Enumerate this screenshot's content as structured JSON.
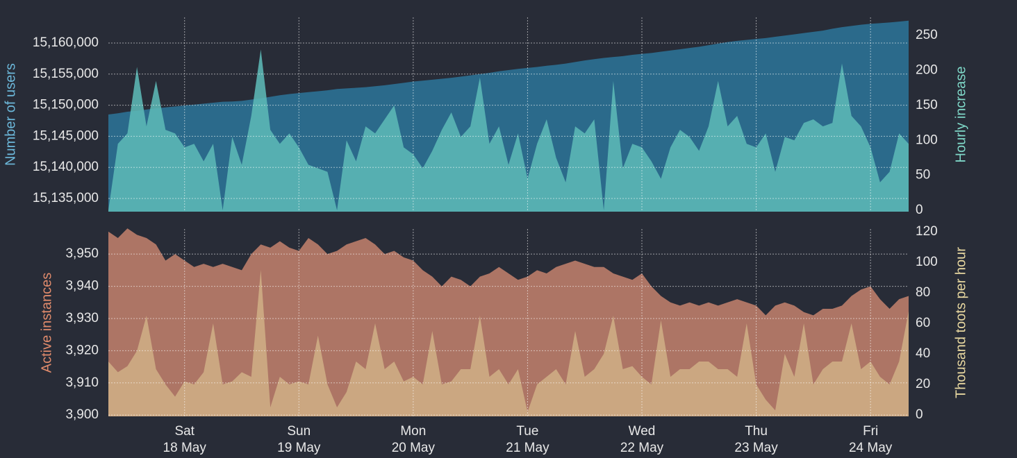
{
  "chart_data": [
    {
      "type": "area",
      "series": [
        {
          "name": "Number of users",
          "color": "#2b6a8b",
          "label_color": "#6cb8da",
          "values": [
            15148500,
            15148700,
            15148950,
            15149100,
            15149300,
            15149500,
            15149650,
            15149800,
            15149950,
            15150100,
            15150250,
            15150400,
            15150550,
            15150600,
            15150700,
            15150900,
            15151100,
            15151350,
            15151600,
            15151800,
            15151950,
            15152100,
            15152250,
            15152400,
            15152600,
            15152700,
            15152800,
            15152900,
            15153050,
            15153200,
            15153400,
            15153600,
            15153800,
            15153950,
            15154100,
            15154250,
            15154400,
            15154600,
            15154800,
            15155000,
            15155200,
            15155450,
            15155650,
            15155850,
            15156000,
            15156150,
            15156350,
            15156500,
            15156700,
            15156950,
            15157200,
            15157400,
            15157600,
            15157750,
            15157900,
            15158100,
            15158250,
            15158400,
            15158600,
            15158800,
            15159000,
            15159200,
            15159400,
            15159650,
            15159900,
            15160150,
            15160350,
            15160500,
            15160650,
            15160800,
            15161000,
            15161200,
            15161400,
            15161600,
            15161800,
            15162000,
            15162300,
            15162550,
            15162750,
            15162950,
            15163100,
            15163200,
            15163300,
            15163450,
            15163600
          ]
        },
        {
          "name": "Hourly increase",
          "color": "#5cb8b6",
          "label_color": "#7fd8c8",
          "axis": "y2",
          "values": [
            0,
            95,
            110,
            205,
            120,
            185,
            115,
            110,
            90,
            95,
            70,
            95,
            0,
            105,
            65,
            135,
            230,
            115,
            95,
            110,
            90,
            65,
            60,
            55,
            0,
            100,
            70,
            120,
            110,
            130,
            150,
            90,
            80,
            60,
            85,
            115,
            140,
            105,
            120,
            190,
            95,
            120,
            65,
            110,
            45,
            95,
            130,
            75,
            40,
            120,
            110,
            130,
            0,
            185,
            60,
            95,
            90,
            70,
            45,
            90,
            115,
            105,
            85,
            120,
            185,
            120,
            135,
            95,
            90,
            110,
            55,
            105,
            100,
            125,
            130,
            120,
            125,
            210,
            135,
            120,
            90,
            40,
            55,
            110,
            95
          ]
        }
      ],
      "ylim": [
        15132880,
        15164130
      ],
      "yticks": [
        {
          "value": 15135000,
          "label": "15,135,000"
        },
        {
          "value": 15140000,
          "label": "15,140,000"
        },
        {
          "value": 15145000,
          "label": "15,145,000"
        },
        {
          "value": 15150000,
          "label": "15,150,000"
        },
        {
          "value": 15155000,
          "label": "15,155,000"
        },
        {
          "value": 15160000,
          "label": "15,160,000"
        }
      ],
      "y2lim": [
        -2,
        276
      ],
      "y2ticks": [
        0,
        50,
        100,
        150,
        200,
        250
      ],
      "grid": true
    },
    {
      "type": "area",
      "categories": [
        null,
        null,
        null,
        null,
        null,
        null,
        null,
        null,
        {
          "day": "Sat",
          "date": "18 May"
        },
        null,
        null,
        null,
        null,
        null,
        null,
        null,
        null,
        null,
        null,
        null,
        {
          "day": "Sun",
          "date": "19 May"
        },
        null,
        null,
        null,
        null,
        null,
        null,
        null,
        null,
        null,
        null,
        null,
        {
          "day": "Mon",
          "date": "20 May"
        },
        null,
        null,
        null,
        null,
        null,
        null,
        null,
        null,
        null,
        null,
        null,
        {
          "day": "Tue",
          "date": "21 May"
        },
        null,
        null,
        null,
        null,
        null,
        null,
        null,
        null,
        null,
        null,
        null,
        {
          "day": "Wed",
          "date": "22 May"
        },
        null,
        null,
        null,
        null,
        null,
        null,
        null,
        null,
        null,
        null,
        null,
        {
          "day": "Thu",
          "date": "23 May"
        },
        null,
        null,
        null,
        null,
        null,
        null,
        null,
        null,
        null,
        null,
        null,
        {
          "day": "Fri",
          "date": "24 May"
        },
        null,
        null,
        null,
        null
      ],
      "series": [
        {
          "name": "Active instances",
          "color": "#ad7565",
          "label_color": "#e08b6c",
          "values": [
            3957,
            3955,
            3958,
            3956,
            3955,
            3953,
            3948,
            3950,
            3948,
            3946,
            3947,
            3946,
            3947,
            3946,
            3945,
            3950,
            3953,
            3952,
            3954,
            3952,
            3951,
            3955,
            3953,
            3950,
            3951,
            3953,
            3954,
            3955,
            3953,
            3950,
            3951,
            3949,
            3948,
            3945,
            3943,
            3940,
            3943,
            3942,
            3940,
            3943,
            3944,
            3946,
            3944,
            3942,
            3943,
            3945,
            3944,
            3946,
            3947,
            3948,
            3947,
            3946,
            3946,
            3944,
            3943,
            3942,
            3944,
            3940,
            3937,
            3935,
            3934,
            3935,
            3934,
            3935,
            3934,
            3935,
            3936,
            3935,
            3934,
            3931,
            3934,
            3935,
            3934,
            3932,
            3931,
            3933,
            3933,
            3934,
            3937,
            3939,
            3940,
            3936,
            3933,
            3936,
            3937
          ]
        },
        {
          "name": "Thousand toots per hour",
          "color": "#cfae85",
          "label_color": "#e8d8a0",
          "axis": "y2",
          "values": [
            35,
            28,
            32,
            42,
            65,
            30,
            20,
            12,
            22,
            20,
            28,
            60,
            20,
            22,
            28,
            25,
            95,
            5,
            25,
            20,
            22,
            20,
            52,
            20,
            5,
            15,
            35,
            30,
            60,
            30,
            35,
            22,
            25,
            20,
            55,
            20,
            22,
            30,
            30,
            65,
            25,
            30,
            20,
            30,
            2,
            20,
            25,
            30,
            20,
            55,
            25,
            30,
            40,
            65,
            30,
            32,
            25,
            20,
            62,
            25,
            30,
            30,
            35,
            35,
            30,
            30,
            25,
            60,
            20,
            10,
            3,
            40,
            25,
            60,
            20,
            30,
            35,
            35,
            60,
            30,
            35,
            25,
            20,
            35,
            68
          ]
        }
      ],
      "ylim": [
        3899.6,
        3957.8
      ],
      "yticks": [
        {
          "value": 3900,
          "label": "3,900"
        },
        {
          "value": 3910,
          "label": "3,910"
        },
        {
          "value": 3920,
          "label": "3,920"
        },
        {
          "value": 3930,
          "label": "3,930"
        },
        {
          "value": 3940,
          "label": "3,940"
        },
        {
          "value": 3950,
          "label": "3,950"
        }
      ],
      "y2lim": [
        -0.9,
        121.8
      ],
      "y2ticks": [
        0,
        20,
        40,
        60,
        80,
        100,
        120
      ],
      "grid": true
    }
  ]
}
